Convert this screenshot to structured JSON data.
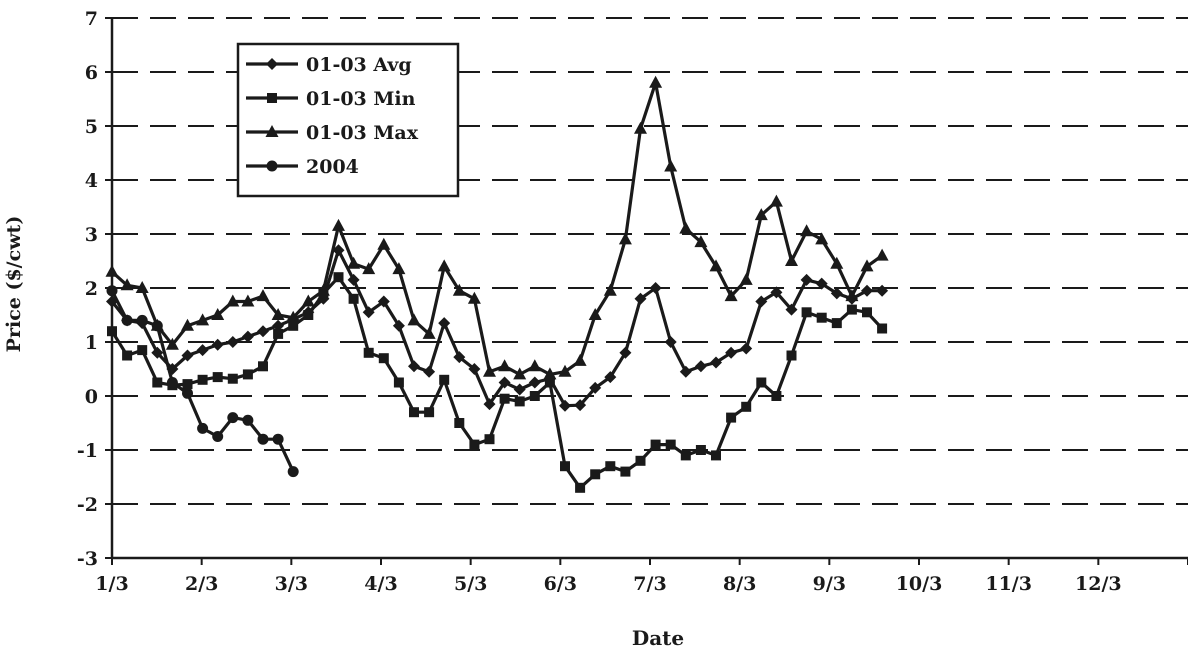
{
  "chart_data": {
    "type": "line",
    "title": "",
    "xlabel": "Date",
    "ylabel": "Price ($/cwt)",
    "ylim": [
      -3,
      7
    ],
    "yticks": [
      "7",
      "6",
      "5",
      "4",
      "3",
      "2",
      "1",
      "0",
      "-1",
      "-2",
      "-3"
    ],
    "xticks": [
      "1/3",
      "2/3",
      "3/3",
      "4/3",
      "5/3",
      "6/3",
      "7/3",
      "8/3",
      "9/3",
      "10/3",
      "11/3",
      "12/3"
    ],
    "x_unit": "weeks since 1/3",
    "grid": "horizontal dashed",
    "legend": {
      "placement": "top-left",
      "entries": [
        "01-03 Avg",
        "01-03 Min",
        "01-03 Max",
        "2004"
      ]
    },
    "series": [
      {
        "name": "01-03 Avg",
        "marker": "diamond",
        "color": "#1a1a1a",
        "points": [
          [
            0,
            1.75
          ],
          [
            1,
            1.4
          ],
          [
            2,
            1.35
          ],
          [
            3,
            0.8
          ],
          [
            4,
            0.5
          ],
          [
            5,
            0.75
          ],
          [
            6,
            0.85
          ],
          [
            7,
            0.95
          ],
          [
            8,
            1.0
          ],
          [
            9,
            1.1
          ],
          [
            10,
            1.2
          ],
          [
            11,
            1.3
          ],
          [
            12,
            1.42
          ],
          [
            13,
            1.55
          ],
          [
            14,
            1.8
          ],
          [
            15,
            2.7
          ],
          [
            16,
            2.15
          ],
          [
            17,
            1.55
          ],
          [
            18,
            1.75
          ],
          [
            19,
            1.3
          ],
          [
            20,
            0.55
          ],
          [
            21,
            0.45
          ],
          [
            22,
            1.35
          ],
          [
            23,
            0.72
          ],
          [
            24,
            0.5
          ],
          [
            25,
            -0.15
          ],
          [
            26,
            0.25
          ],
          [
            27,
            0.12
          ],
          [
            28,
            0.25
          ],
          [
            29,
            0.32
          ],
          [
            30,
            -0.18
          ],
          [
            31,
            -0.17
          ],
          [
            32,
            0.15
          ],
          [
            33,
            0.35
          ],
          [
            34,
            0.8
          ],
          [
            35,
            1.8
          ],
          [
            36,
            2.0
          ],
          [
            37,
            1.0
          ],
          [
            38,
            0.45
          ],
          [
            39,
            0.55
          ],
          [
            40,
            0.62
          ],
          [
            41,
            0.8
          ],
          [
            42,
            0.88
          ],
          [
            43,
            1.75
          ],
          [
            44,
            1.92
          ],
          [
            45,
            1.6
          ],
          [
            46,
            2.15
          ],
          [
            47,
            2.08
          ],
          [
            48,
            1.9
          ],
          [
            49,
            1.8
          ],
          [
            50,
            1.95
          ],
          [
            51,
            1.95
          ]
        ]
      },
      {
        "name": "01-03 Min",
        "marker": "square",
        "color": "#1a1a1a",
        "points": [
          [
            0,
            1.2
          ],
          [
            1,
            0.75
          ],
          [
            2,
            0.85
          ],
          [
            3,
            0.25
          ],
          [
            4,
            0.2
          ],
          [
            5,
            0.22
          ],
          [
            6,
            0.3
          ],
          [
            7,
            0.35
          ],
          [
            8,
            0.32
          ],
          [
            9,
            0.4
          ],
          [
            10,
            0.55
          ],
          [
            11,
            1.15
          ],
          [
            12,
            1.3
          ],
          [
            13,
            1.5
          ],
          [
            14,
            1.9
          ],
          [
            15,
            2.2
          ],
          [
            16,
            1.8
          ],
          [
            17,
            0.8
          ],
          [
            18,
            0.7
          ],
          [
            19,
            0.25
          ],
          [
            20,
            -0.3
          ],
          [
            21,
            -0.3
          ],
          [
            22,
            0.3
          ],
          [
            23,
            -0.5
          ],
          [
            24,
            -0.9
          ],
          [
            25,
            -0.8
          ],
          [
            26,
            -0.05
          ],
          [
            27,
            -0.1
          ],
          [
            28,
            0.0
          ],
          [
            29,
            0.25
          ],
          [
            30,
            -1.3
          ],
          [
            31,
            -1.7
          ],
          [
            32,
            -1.45
          ],
          [
            33,
            -1.3
          ],
          [
            34,
            -1.4
          ],
          [
            35,
            -1.2
          ],
          [
            36,
            -0.9
          ],
          [
            37,
            -0.9
          ],
          [
            38,
            -1.1
          ],
          [
            39,
            -1.0
          ],
          [
            40,
            -1.1
          ],
          [
            41,
            -0.4
          ],
          [
            42,
            -0.2
          ],
          [
            43,
            0.25
          ],
          [
            44,
            0.0
          ],
          [
            45,
            0.75
          ],
          [
            46,
            1.55
          ],
          [
            47,
            1.45
          ],
          [
            48,
            1.35
          ],
          [
            49,
            1.6
          ],
          [
            50,
            1.55
          ],
          [
            51,
            1.25
          ]
        ]
      },
      {
        "name": "01-03 Max",
        "marker": "triangle",
        "color": "#1a1a1a",
        "points": [
          [
            0,
            2.3
          ],
          [
            1,
            2.05
          ],
          [
            2,
            2.0
          ],
          [
            3,
            1.3
          ],
          [
            4,
            0.95
          ],
          [
            5,
            1.3
          ],
          [
            6,
            1.4
          ],
          [
            7,
            1.5
          ],
          [
            8,
            1.75
          ],
          [
            9,
            1.75
          ],
          [
            10,
            1.85
          ],
          [
            11,
            1.5
          ],
          [
            12,
            1.45
          ],
          [
            13,
            1.75
          ],
          [
            14,
            1.95
          ],
          [
            15,
            3.15
          ],
          [
            16,
            2.45
          ],
          [
            17,
            2.35
          ],
          [
            18,
            2.8
          ],
          [
            19,
            2.35
          ],
          [
            20,
            1.4
          ],
          [
            21,
            1.15
          ],
          [
            22,
            2.4
          ],
          [
            23,
            1.95
          ],
          [
            24,
            1.8
          ],
          [
            25,
            0.45
          ],
          [
            26,
            0.55
          ],
          [
            27,
            0.4
          ],
          [
            28,
            0.55
          ],
          [
            29,
            0.4
          ],
          [
            30,
            0.45
          ],
          [
            31,
            0.65
          ],
          [
            32,
            1.5
          ],
          [
            33,
            1.95
          ],
          [
            34,
            2.9
          ],
          [
            35,
            4.95
          ],
          [
            36,
            5.8
          ],
          [
            37,
            4.25
          ],
          [
            38,
            3.1
          ],
          [
            39,
            2.85
          ],
          [
            40,
            2.4
          ],
          [
            41,
            1.85
          ],
          [
            42,
            2.15
          ],
          [
            43,
            3.35
          ],
          [
            44,
            3.6
          ],
          [
            45,
            2.5
          ],
          [
            46,
            3.05
          ],
          [
            47,
            2.9
          ],
          [
            48,
            2.45
          ],
          [
            49,
            1.85
          ],
          [
            50,
            2.4
          ],
          [
            51,
            2.6
          ]
        ]
      },
      {
        "name": "2004",
        "marker": "circle",
        "color": "#1a1a1a",
        "points": [
          [
            0,
            1.95
          ],
          [
            1,
            1.4
          ],
          [
            2,
            1.4
          ],
          [
            3,
            1.3
          ],
          [
            4,
            0.25
          ],
          [
            5,
            0.05
          ],
          [
            6,
            -0.6
          ],
          [
            7,
            -0.75
          ],
          [
            8,
            -0.4
          ],
          [
            9,
            -0.45
          ],
          [
            10,
            -0.8
          ],
          [
            11,
            -0.8
          ],
          [
            12,
            -1.4
          ]
        ]
      }
    ]
  }
}
